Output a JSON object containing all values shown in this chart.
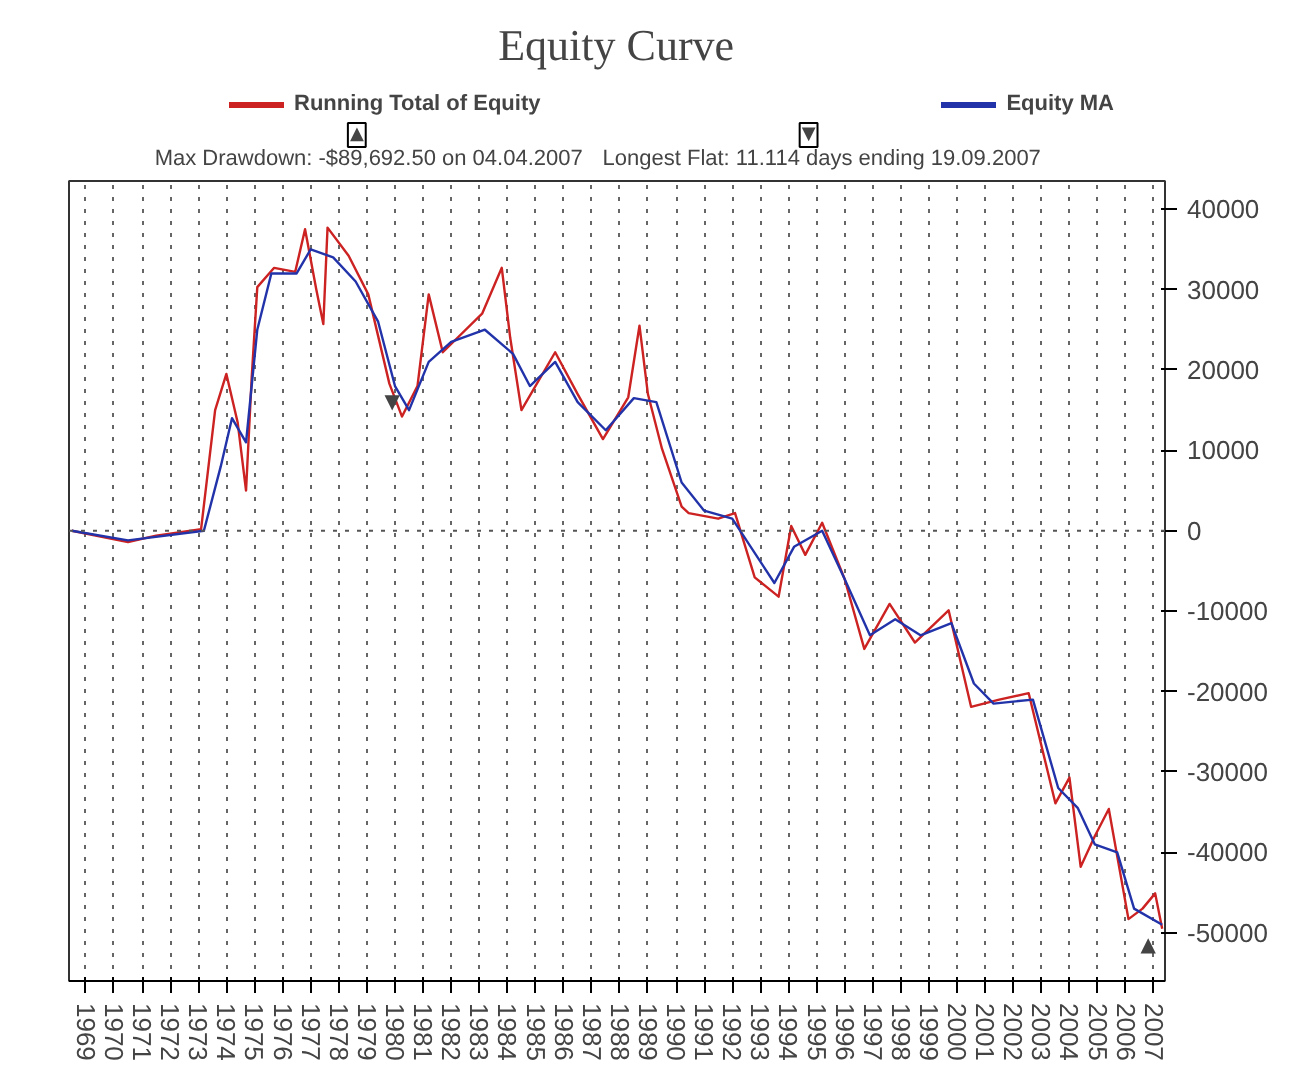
{
  "chart_data": {
    "type": "line",
    "title": "Equity Curve",
    "annotations": [
      "Max Drawdown: -$89,692.50 on 04.04.2007",
      "Longest Flat: 11.114 days ending 19.09.2007",
      "▲",
      "▼",
      {
        "text": "▼",
        "x": 1979.9,
        "y": 18000
      },
      {
        "text": "▲",
        "x": 2006.8,
        "y": -49500
      }
    ],
    "series": [
      {
        "name": "Running Total of Equity",
        "color": "#cc2222",
        "x": [
          1968.5,
          1970.5,
          1971.5,
          1973.1,
          1973.6,
          1974.0,
          1974.4,
          1974.7,
          1974.9,
          1975.1,
          1975.7,
          1976.45,
          1976.8,
          1977.2,
          1977.45,
          1977.6,
          1978.35,
          1979.05,
          1979.8,
          1980.25,
          1980.8,
          1981.2,
          1981.7,
          1983.1,
          1983.8,
          1984.1,
          1984.5,
          1985.7,
          1986.5,
          1987.4,
          1988.3,
          1988.7,
          1989.0,
          1989.5,
          1990.2,
          1990.45,
          1991.5,
          1992.1,
          1992.8,
          1993.65,
          1994.1,
          1994.6,
          1995.2,
          1996.0,
          1996.7,
          1997.6,
          1998.5,
          1999.7,
          2000.5,
          2001.5,
          2002.55,
          2003.5,
          2004.0,
          2004.4,
          2004.9,
          2005.4,
          2006.1,
          2006.6,
          2007.05,
          2007.3
        ],
        "values": [
          0,
          -1400,
          -600,
          200,
          15000,
          19500,
          13500,
          5000,
          19000,
          30300,
          32700,
          32200,
          37500,
          30000,
          25700,
          37700,
          34200,
          29400,
          18300,
          14200,
          18000,
          29400,
          22200,
          27000,
          32700,
          24000,
          15000,
          22200,
          17000,
          11400,
          16600,
          25500,
          17000,
          10200,
          3000,
          2200,
          1500,
          2200,
          -5800,
          -8200,
          600,
          -3000,
          1000,
          -6000,
          -14700,
          -9100,
          -13900,
          -9900,
          -21900,
          -21000,
          -20200,
          -33900,
          -30700,
          -41800,
          -38000,
          -34600,
          -48300,
          -47000,
          -45100,
          -49500
        ]
      },
      {
        "name": "Equity MA",
        "color": "#2233aa",
        "x": [
          1968.5,
          1970.5,
          1973.2,
          1973.8,
          1974.2,
          1974.7,
          1975.1,
          1975.6,
          1976.5,
          1977.0,
          1977.8,
          1978.6,
          1979.4,
          1980.0,
          1980.5,
          1981.2,
          1982.0,
          1983.2,
          1984.2,
          1984.8,
          1985.7,
          1986.5,
          1987.5,
          1988.5,
          1989.3,
          1990.2,
          1991.0,
          1992.0,
          1993.5,
          1994.2,
          1995.2,
          1996.0,
          1996.9,
          1997.8,
          1998.7,
          1999.8,
          2000.6,
          2001.3,
          2002.7,
          2003.6,
          2004.3,
          2004.9,
          2005.7,
          2006.3,
          2007.3
        ],
        "values": [
          0,
          -1200,
          0,
          8000,
          14000,
          11000,
          25000,
          32000,
          32000,
          35000,
          34000,
          31000,
          26000,
          18000,
          15000,
          21000,
          23500,
          25000,
          22000,
          18000,
          21000,
          16000,
          12500,
          16500,
          16000,
          6000,
          2500,
          1500,
          -6500,
          -2000,
          0,
          -6000,
          -13000,
          -11000,
          -13000,
          -11500,
          -19000,
          -21500,
          -21000,
          -32000,
          -34500,
          -39000,
          -40000,
          -47000,
          -49000
        ]
      }
    ],
    "xlim": [
      1968.4,
      2007.4
    ],
    "ylim": [
      -56000,
      43500
    ],
    "xticks": [
      1969,
      1970,
      1971,
      1972,
      1973,
      1974,
      1975,
      1976,
      1977,
      1978,
      1979,
      1980,
      1981,
      1982,
      1983,
      1984,
      1985,
      1986,
      1987,
      1988,
      1989,
      1990,
      1991,
      1992,
      1993,
      1994,
      1995,
      1996,
      1997,
      1998,
      1999,
      2000,
      2001,
      2002,
      2003,
      2004,
      2005,
      2006,
      2007
    ],
    "yticks": [
      -50000,
      -40000,
      -30000,
      -20000,
      -10000,
      0,
      10000,
      20000,
      30000,
      40000
    ],
    "ref_lines": [
      {
        "axis": "y",
        "value": 0,
        "line_style": "dotted",
        "color": "#555555"
      }
    ],
    "grid": "x",
    "legend": "top",
    "line_style": "solid",
    "marker": "none"
  }
}
